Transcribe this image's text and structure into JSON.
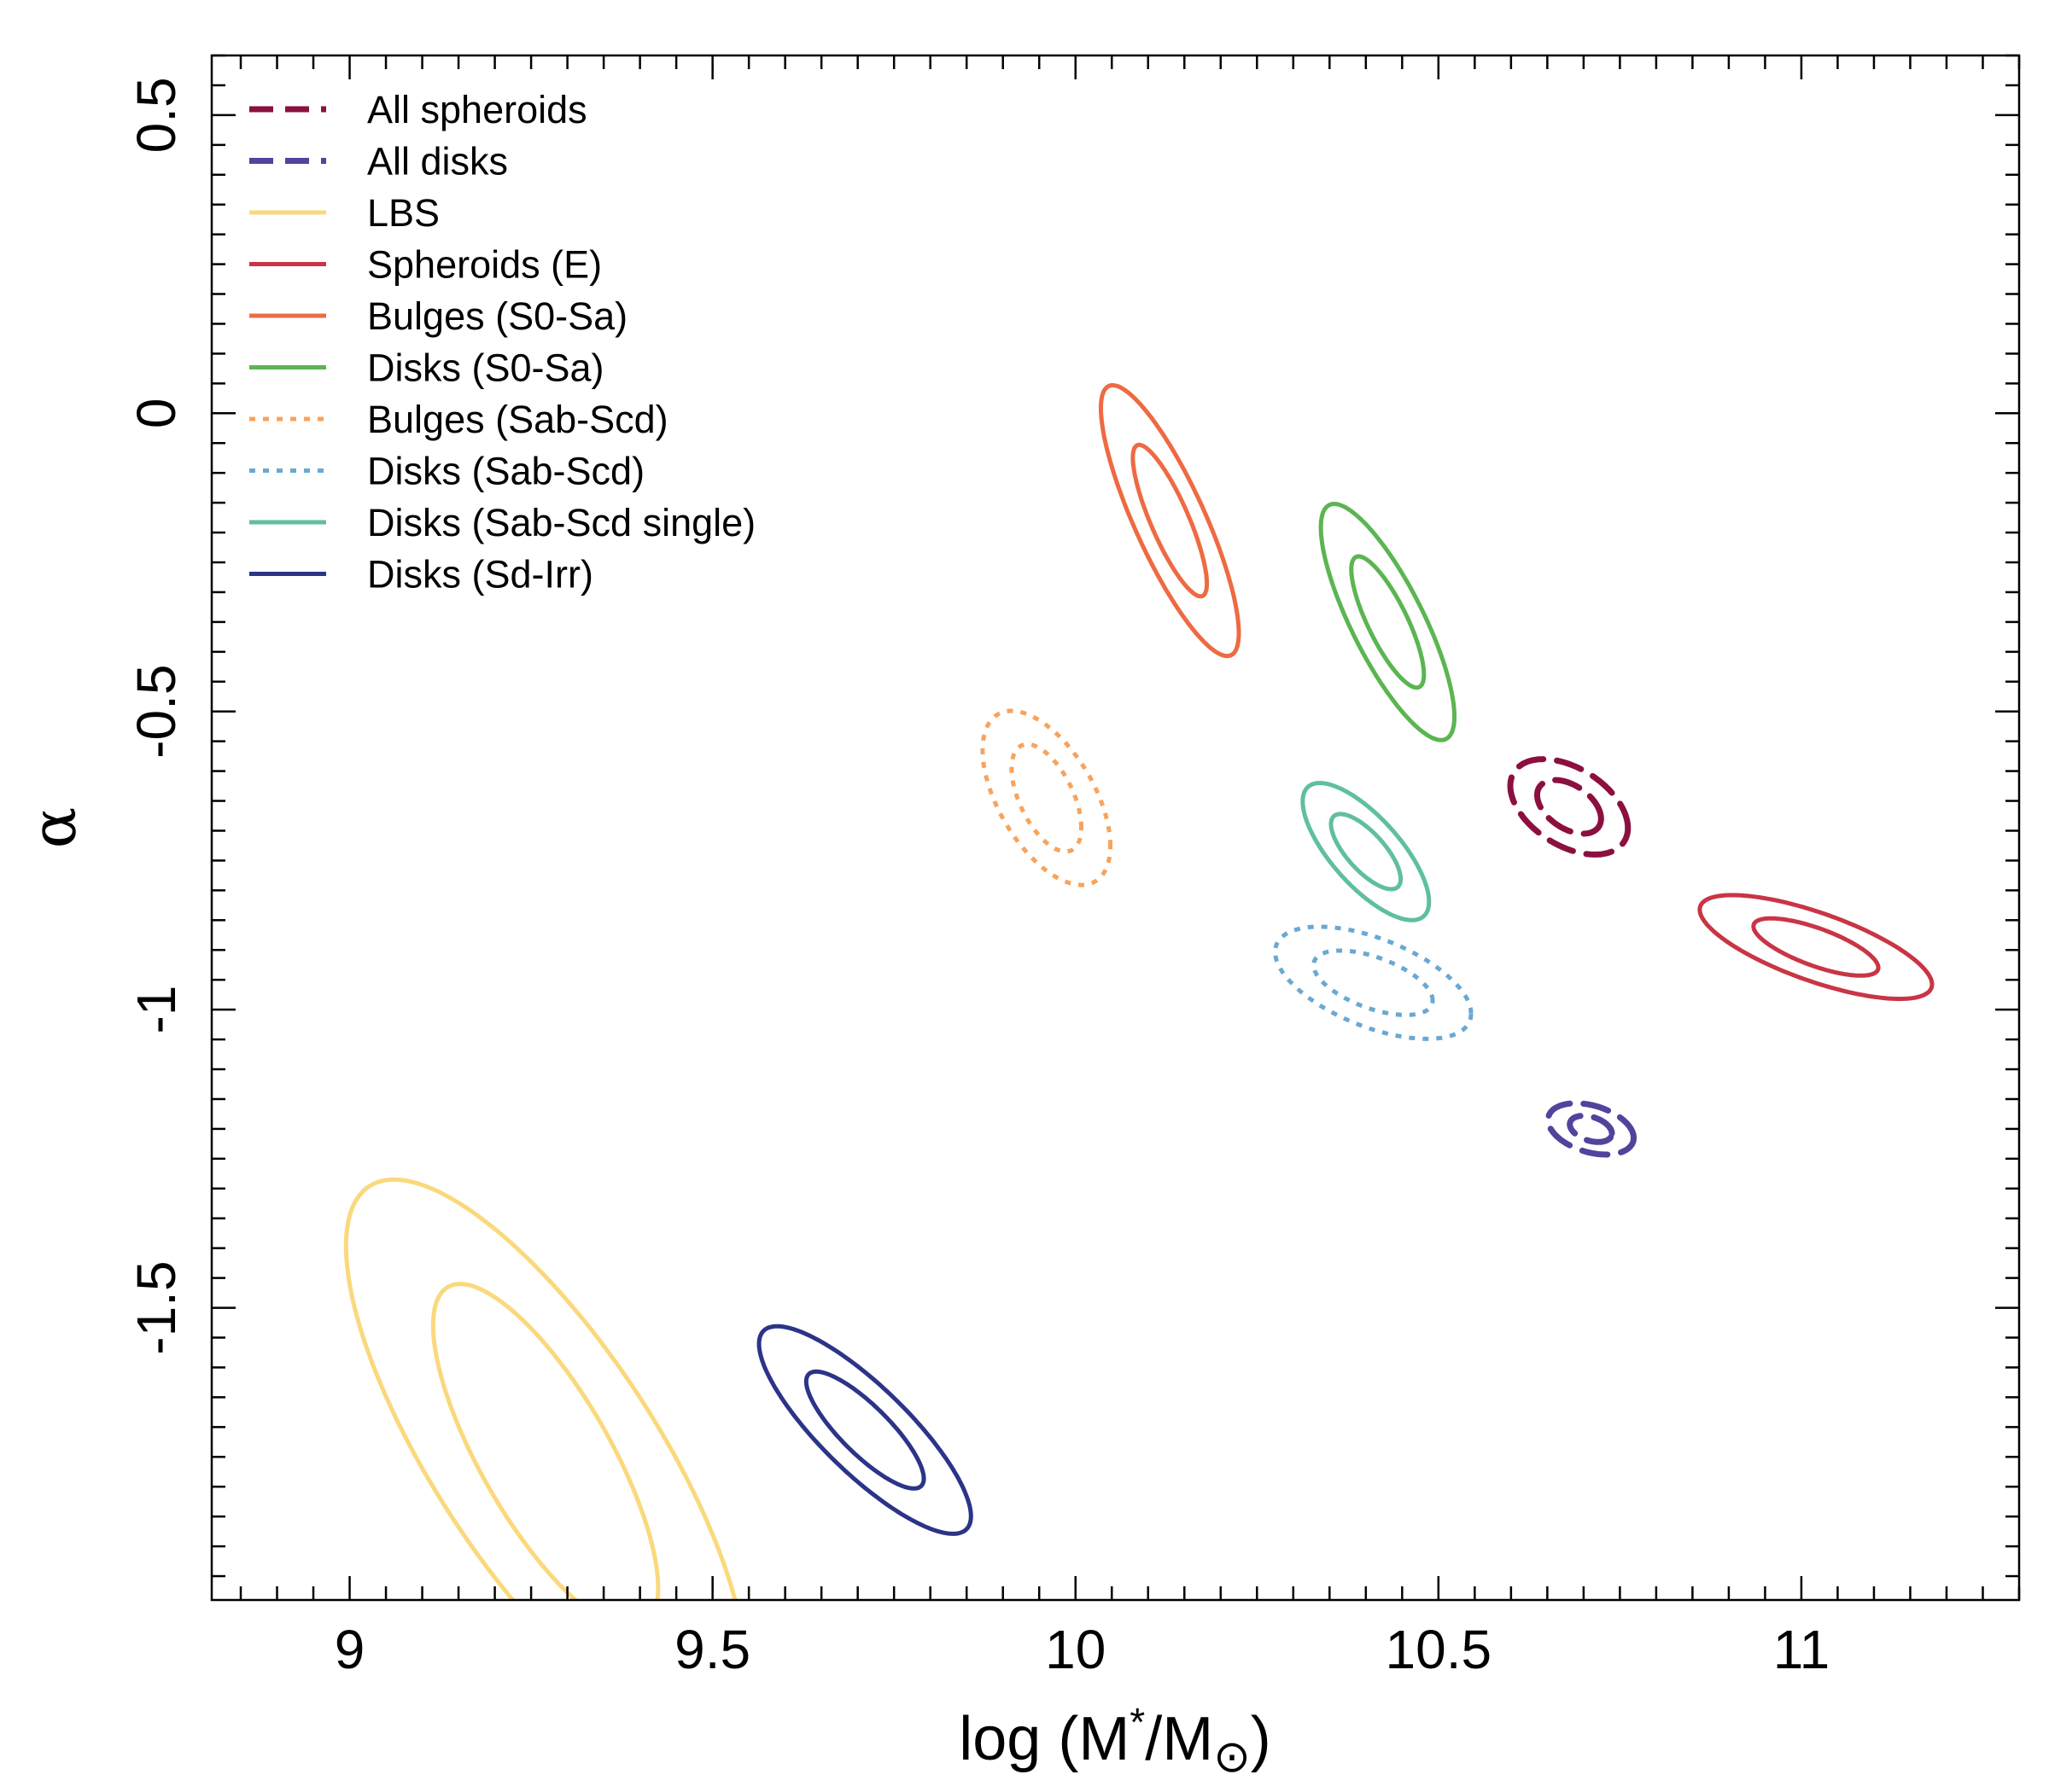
{
  "chart_data": {
    "type": "contour",
    "title": "",
    "xlabel": {
      "prefix": "log (M",
      "sup": "*",
      "middle": "/M",
      "sun_symbol": "⊙",
      "suffix": ")"
    },
    "ylabel": "α",
    "xlim": [
      8.81,
      11.3
    ],
    "ylim": [
      -1.99,
      0.6
    ],
    "xticks_major": [
      9,
      9.5,
      10,
      10.5,
      11
    ],
    "xtick_labels": [
      "9",
      "9.5",
      "10",
      "10.5",
      "11"
    ],
    "yticks_major": [
      -1.5,
      -1,
      -0.5,
      0,
      0.5
    ],
    "ytick_labels": [
      "-1.5",
      "-1",
      "-0.5",
      "0",
      "0.5"
    ],
    "grid": false,
    "legend_position": "top-left",
    "series": [
      {
        "name": "All spheroids",
        "color": "#8B1040",
        "style": "dashed",
        "center": [
          10.68,
          -0.66
        ],
        "levels": [
          {
            "sx": 0.044,
            "sy": 0.045,
            "rho": -0.44
          },
          {
            "sx": 0.081,
            "sy": 0.08,
            "rho": -0.44
          }
        ]
      },
      {
        "name": "All disks",
        "color": "#52439C",
        "style": "dashed",
        "center": [
          10.71,
          -1.2
        ],
        "levels": [
          {
            "sx": 0.029,
            "sy": 0.022,
            "rho": -0.35
          },
          {
            "sx": 0.059,
            "sy": 0.043,
            "rho": -0.35
          }
        ]
      },
      {
        "name": "LBS",
        "color": "#FAD97D",
        "style": "solid",
        "center": [
          9.27,
          -1.75
        ],
        "levels": [
          {
            "sx": 0.155,
            "sy": 0.29,
            "rho": -0.76
          },
          {
            "sx": 0.275,
            "sy": 0.465,
            "rho": -0.76
          }
        ]
      },
      {
        "name": "Spheroids (E)",
        "color": "#C93545",
        "style": "solid",
        "center": [
          11.02,
          -0.895
        ],
        "levels": [
          {
            "sx": 0.086,
            "sy": 0.048,
            "rho": -0.72
          },
          {
            "sx": 0.16,
            "sy": 0.087,
            "rho": -0.72
          }
        ]
      },
      {
        "name": "Bulges (S0-Sa)",
        "color": "#EE6A43",
        "style": "solid",
        "center": [
          10.13,
          -0.18
        ],
        "levels": [
          {
            "sx": 0.051,
            "sy": 0.127,
            "rho": -0.83
          },
          {
            "sx": 0.095,
            "sy": 0.227,
            "rho": -0.83
          }
        ]
      },
      {
        "name": "Disks (S0-Sa)",
        "color": "#5BB551",
        "style": "solid",
        "center": [
          10.43,
          -0.35
        ],
        "levels": [
          {
            "sx": 0.05,
            "sy": 0.11,
            "rho": -0.8
          },
          {
            "sx": 0.092,
            "sy": 0.198,
            "rho": -0.8
          }
        ]
      },
      {
        "name": "Bulges (Sab-Scd)",
        "color": "#F7A35C",
        "style": "dotted",
        "center": [
          9.96,
          -0.645
        ],
        "levels": [
          {
            "sx": 0.048,
            "sy": 0.09,
            "rho": -0.55
          },
          {
            "sx": 0.088,
            "sy": 0.146,
            "rho": -0.55
          }
        ]
      },
      {
        "name": "Disks (Sab-Scd)",
        "color": "#6BA8D2",
        "style": "dotted",
        "center": [
          10.41,
          -0.955
        ],
        "levels": [
          {
            "sx": 0.082,
            "sy": 0.054,
            "rho": -0.55
          },
          {
            "sx": 0.135,
            "sy": 0.094,
            "rho": -0.55
          }
        ]
      },
      {
        "name": "Disks (Sab-Scd single)",
        "color": "#5FBF9E",
        "style": "solid",
        "center": [
          10.4,
          -0.735
        ],
        "levels": [
          {
            "sx": 0.048,
            "sy": 0.063,
            "rho": -0.73
          },
          {
            "sx": 0.087,
            "sy": 0.115,
            "rho": -0.73
          }
        ]
      },
      {
        "name": "Disks (Sd-Irr)",
        "color": "#2B3487",
        "style": "solid",
        "center": [
          9.71,
          -1.705
        ],
        "levels": [
          {
            "sx": 0.081,
            "sy": 0.098,
            "rho": -0.83
          },
          {
            "sx": 0.146,
            "sy": 0.174,
            "rho": -0.83
          }
        ]
      }
    ]
  }
}
